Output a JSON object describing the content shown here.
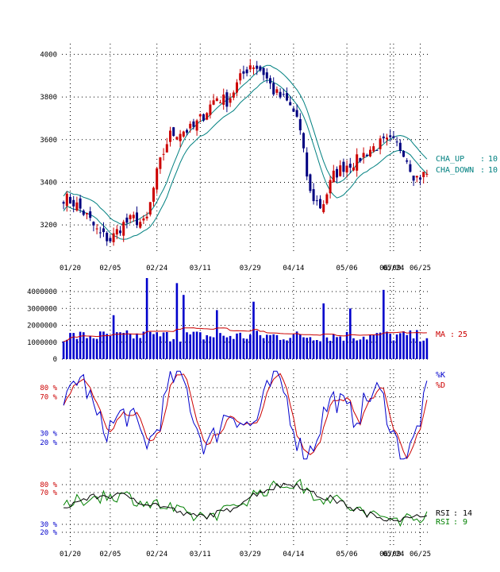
{
  "chart_data": [
    {
      "panel": "price",
      "type": "candlestick",
      "x_ticks": [
        "01/20",
        "02/05",
        "02/24",
        "03/11",
        "03/29",
        "04/14",
        "05/06",
        "05/24",
        "06/09",
        "06/25"
      ],
      "y_ticks": [
        3200,
        3400,
        3600,
        3800,
        4000
      ],
      "ylim": [
        3100,
        4050
      ],
      "grid": true,
      "legend": [
        {
          "label": "CHA_UP",
          "value": "10",
          "color": "#008080"
        },
        {
          "label": "CHA_DOWN",
          "value": "10",
          "color": "#008080"
        }
      ],
      "close_anchors": [
        3330,
        3300,
        3240,
        3160,
        3130,
        3200,
        3230,
        3200,
        3450,
        3620,
        3640,
        3650,
        3720,
        3800,
        3780,
        3880,
        3960,
        3920,
        3820,
        3780,
        3700,
        3350,
        3280,
        3430,
        3480,
        3500,
        3550,
        3580,
        3590,
        3550,
        3420,
        3440
      ]
    },
    {
      "panel": "volume",
      "type": "bar",
      "y_ticks": [
        0,
        1000000,
        2000000,
        3000000,
        4000000
      ],
      "ylim": [
        0,
        4800000
      ],
      "legend": [
        {
          "label": "MA",
          "value": "25",
          "color": "#cc0000"
        }
      ],
      "base_level": 1300000,
      "spikes": [
        {
          "i": 25,
          "v": 4800000
        },
        {
          "i": 34,
          "v": 4500000
        },
        {
          "i": 36,
          "v": 3800000
        },
        {
          "i": 57,
          "v": 3400000
        },
        {
          "i": 78,
          "v": 3300000
        },
        {
          "i": 96,
          "v": 4100000
        },
        {
          "i": 15,
          "v": 2600000
        },
        {
          "i": 46,
          "v": 2900000
        },
        {
          "i": 86,
          "v": 3000000
        }
      ]
    },
    {
      "panel": "stochastic",
      "type": "line",
      "levels": [
        "80 %",
        "70 %",
        "30 %",
        "20 %"
      ],
      "level_values": [
        80,
        70,
        30,
        20
      ],
      "ylim": [
        0,
        100
      ],
      "series": [
        {
          "name": "%K",
          "color": "#0000cc"
        },
        {
          "name": "%D",
          "color": "#cc0000"
        }
      ]
    },
    {
      "panel": "rsi",
      "type": "line",
      "levels": [
        "80 %",
        "70 %",
        "30 %",
        "20 %"
      ],
      "level_values": [
        80,
        70,
        30,
        20
      ],
      "ylim": [
        0,
        100
      ],
      "x_ticks": [
        "01/20",
        "02/05",
        "02/24",
        "03/11",
        "03/29",
        "04/14",
        "05/06",
        "05/24",
        "06/09",
        "06/25"
      ],
      "series": [
        {
          "name": "RSI",
          "value": "14",
          "color": "#000000"
        },
        {
          "name": "RSI",
          "value": "9",
          "color": "#008000"
        }
      ]
    }
  ]
}
